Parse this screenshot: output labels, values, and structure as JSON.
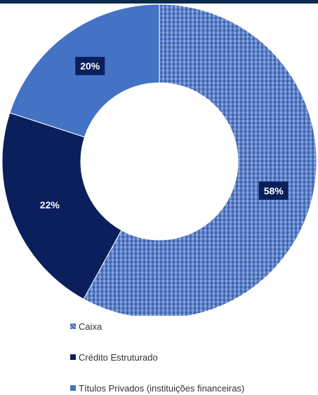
{
  "chart_data": {
    "type": "pie",
    "variant": "donut",
    "title": "",
    "slices": [
      {
        "label": "Caixa",
        "value": 58,
        "display": "58%",
        "color": "#5b7fc8",
        "pattern": "textured"
      },
      {
        "label": "Crédito Estruturado",
        "value": 22,
        "display": "22%",
        "color": "#0a1f5c",
        "pattern": "solid"
      },
      {
        "label": "Títulos Privados (instituições financeiras)",
        "value": 20,
        "display": "20%",
        "color": "#4472c4",
        "pattern": "solid"
      }
    ],
    "data_label_style": {
      "background": "#0a1f5c",
      "text_color": "#ffffff"
    },
    "legend_position": "bottom-left"
  },
  "colors": {
    "header_band": "#0c2a4f",
    "texture_dark": "#3f63b0",
    "texture_light": "#8aa6dc"
  }
}
